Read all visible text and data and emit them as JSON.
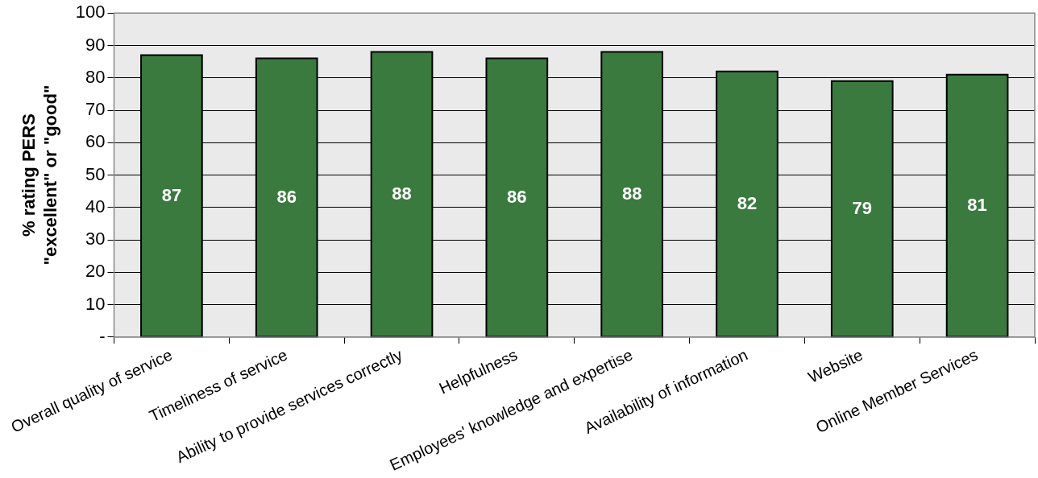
{
  "chart_data": {
    "type": "bar",
    "ylabel": "% rating PERS\n\"excellent\" or \"good\"",
    "categories": [
      "Overall quality of service",
      "Timeliness of service",
      "Ability to provide services correctly",
      "Helpfulness",
      "Employees' knowledge and expertise",
      "Availability of information",
      "Website",
      "Online Member Services"
    ],
    "values": [
      87,
      86,
      88,
      86,
      88,
      82,
      79,
      81
    ],
    "color": "#3a7a3f",
    "ylim": [
      0,
      100
    ],
    "yticks": [
      {
        "value": 0,
        "label": "-"
      },
      10,
      20,
      30,
      40,
      50,
      60,
      70,
      80,
      90,
      100
    ],
    "grid": "y",
    "legend": false,
    "data_labels": true
  }
}
